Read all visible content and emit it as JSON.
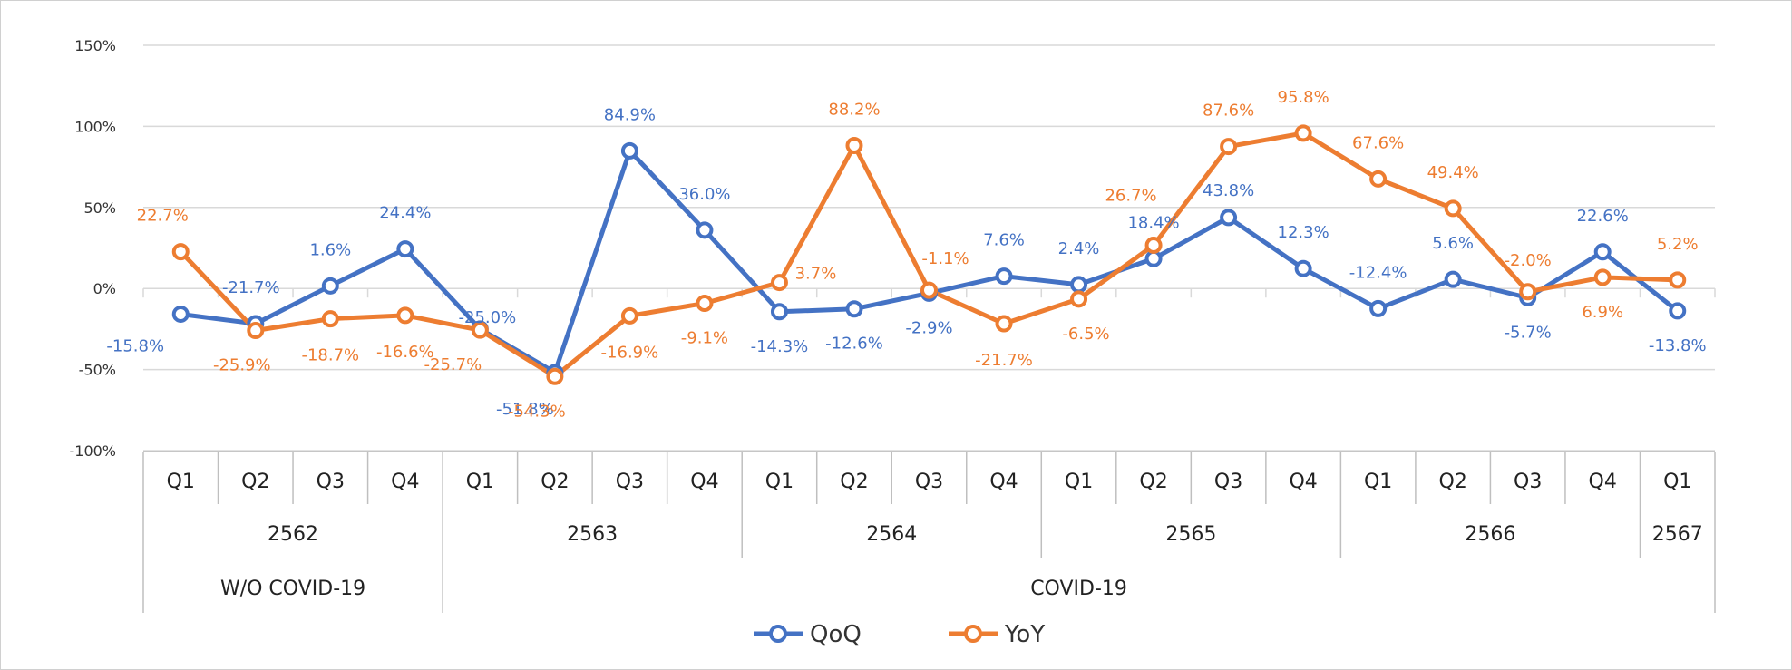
{
  "chart_data": {
    "type": "line",
    "y_ticks": [
      "150%",
      "100%",
      "50%",
      "0%",
      "-50%",
      "-100%"
    ],
    "ylim": [
      -100,
      150
    ],
    "grid": true,
    "legend_position": "bottom",
    "quarters": [
      "Q1",
      "Q2",
      "Q3",
      "Q4",
      "Q1",
      "Q2",
      "Q3",
      "Q4",
      "Q1",
      "Q2",
      "Q3",
      "Q4",
      "Q1",
      "Q2",
      "Q3",
      "Q4",
      "Q1",
      "Q2",
      "Q3",
      "Q4",
      "Q1"
    ],
    "years": [
      {
        "label": "2562",
        "count": 4
      },
      {
        "label": "2563",
        "count": 4
      },
      {
        "label": "2564",
        "count": 4
      },
      {
        "label": "2565",
        "count": 4
      },
      {
        "label": "2566",
        "count": 4
      },
      {
        "label": "2567",
        "count": 1
      }
    ],
    "periods": [
      {
        "label": "W/O COVID-19",
        "count": 4
      },
      {
        "label": "COVID-19",
        "count": 17
      }
    ],
    "series": [
      {
        "name": "QoQ",
        "color": "#4472C4",
        "values": [
          -15.8,
          -21.7,
          1.6,
          24.4,
          -25.0,
          -51.8,
          84.9,
          36.0,
          -14.3,
          -12.6,
          -2.9,
          7.6,
          2.4,
          18.4,
          43.8,
          12.3,
          -12.4,
          5.6,
          -5.7,
          22.6,
          -13.8
        ],
        "labels": [
          "-15.8%",
          "-21.7%",
          "1.6%",
          "24.4%",
          "-25.0%",
          "-51.8%",
          "84.9%",
          "36.0%",
          "-14.3%",
          "-12.6%",
          "-2.9%",
          "7.6%",
          "2.4%",
          "18.4%",
          "43.8%",
          "12.3%",
          "-12.4%",
          "5.6%",
          "-5.7%",
          "22.6%",
          "-13.8%"
        ]
      },
      {
        "name": "YoY",
        "color": "#ED7D31",
        "values": [
          22.7,
          -25.9,
          -18.7,
          -16.6,
          -25.7,
          -54.3,
          -16.9,
          -9.1,
          3.7,
          88.2,
          -1.1,
          -21.7,
          -6.5,
          26.7,
          87.6,
          95.8,
          67.6,
          49.4,
          -2.0,
          6.9,
          5.2
        ],
        "labels": [
          "22.7%",
          "-25.9%",
          "-18.7%",
          "-16.6%",
          "-25.7%",
          "-54.3%",
          "-16.9%",
          "-9.1%",
          "3.7%",
          "88.2%",
          "-1.1%",
          "-21.7%",
          "-6.5%",
          "26.7%",
          "87.6%",
          "95.8%",
          "67.6%",
          "49.4%",
          "-2.0%",
          "6.9%",
          "5.2%"
        ]
      }
    ]
  }
}
